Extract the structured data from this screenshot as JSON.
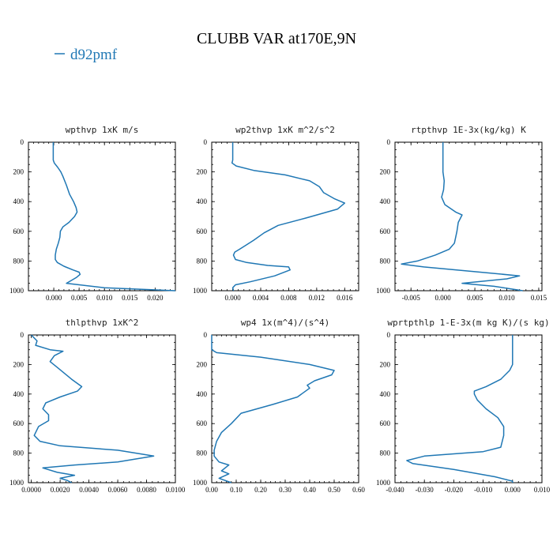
{
  "figure": {
    "title": "CLUBB VAR at170E,9N",
    "legend": {
      "label": "d92pmf",
      "color": "#1f77b4"
    }
  },
  "chart_data": [
    {
      "type": "line",
      "title": "wpthvp  1xK m/s",
      "xlim": [
        -0.005,
        0.024
      ],
      "xticks": [
        0.0,
        0.005,
        0.01,
        0.015,
        0.02
      ],
      "xtick_labels": [
        "0.000",
        "0.005",
        "0.010",
        "0.015",
        "0.020"
      ],
      "ylim": [
        0,
        1000
      ],
      "yticks": [
        0,
        200,
        400,
        600,
        800,
        1000
      ],
      "y_inverted": true,
      "series": [
        {
          "name": "d92pmf",
          "color": "#1f77b4",
          "x": [
            -0.0001,
            -0.0001,
            0.0001,
            0.0008,
            0.0014,
            0.0018,
            0.0025,
            0.0031,
            0.0039,
            0.0044,
            0.0046,
            0.0041,
            0.003,
            0.0018,
            0.0013,
            0.0012,
            0.0009,
            0.0005,
            0.0003,
            0.0003,
            0.0007,
            0.002,
            0.0038,
            0.005,
            0.0052,
            0.0045,
            0.0025,
            0.01,
            0.024
          ],
          "y": [
            0,
            120,
            140,
            170,
            200,
            230,
            290,
            350,
            400,
            440,
            470,
            500,
            540,
            570,
            600,
            640,
            680,
            720,
            760,
            790,
            810,
            835,
            860,
            875,
            890,
            910,
            950,
            980,
            1000
          ]
        }
      ]
    },
    {
      "type": "line",
      "title": "wp2thvp  1xK m^2/s^2",
      "xlim": [
        -0.003,
        0.018
      ],
      "xticks": [
        0.0,
        0.004,
        0.008,
        0.012,
        0.016
      ],
      "xtick_labels": [
        "0.000",
        "0.004",
        "0.008",
        "0.012",
        "0.016"
      ],
      "ylim": [
        0,
        1000
      ],
      "yticks": [
        0,
        200,
        400,
        600,
        800,
        1000
      ],
      "y_inverted": true,
      "series": [
        {
          "name": "d92pmf",
          "color": "#1f77b4",
          "x": [
            0.0,
            0.0,
            -0.0001,
            0.0005,
            0.003,
            0.0075,
            0.011,
            0.0124,
            0.013,
            0.0145,
            0.016,
            0.015,
            0.0105,
            0.0065,
            0.0045,
            0.003,
            0.002,
            0.001,
            0.0003,
            0.0001,
            0.0004,
            0.002,
            0.005,
            0.008,
            0.0082,
            0.006,
            0.0025,
            0.0004,
            0.0,
            0.0001
          ],
          "y": [
            0,
            120,
            140,
            160,
            190,
            220,
            260,
            300,
            340,
            380,
            410,
            450,
            510,
            560,
            610,
            660,
            690,
            720,
            740,
            760,
            790,
            810,
            830,
            840,
            860,
            900,
            940,
            960,
            980,
            1000
          ]
        }
      ]
    },
    {
      "type": "line",
      "title": "rtpthvp  1E-3x(kg/kg) K",
      "xlim": [
        -0.0075,
        0.0155
      ],
      "xticks": [
        -0.005,
        0.0,
        0.005,
        0.01,
        0.015
      ],
      "xtick_labels": [
        "-0.005",
        "0.000",
        "0.005",
        "0.010",
        "0.015"
      ],
      "ylim": [
        0,
        1000
      ],
      "yticks": [
        0,
        200,
        400,
        600,
        800,
        1000
      ],
      "y_inverted": true,
      "series": [
        {
          "name": "d92pmf",
          "color": "#1f77b4",
          "x": [
            0.0,
            0.0,
            0.0002,
            0.0001,
            -0.0002,
            0.0003,
            0.002,
            0.003,
            0.0024,
            0.0022,
            0.0018,
            0.001,
            -0.0012,
            -0.004,
            -0.0065,
            -0.003,
            0.007,
            0.012,
            0.01,
            0.003,
            0.008,
            0.0125
          ],
          "y": [
            0,
            200,
            260,
            320,
            370,
            420,
            470,
            490,
            540,
            600,
            680,
            720,
            760,
            800,
            820,
            840,
            880,
            900,
            920,
            950,
            970,
            1000
          ]
        }
      ]
    },
    {
      "type": "line",
      "title": "thlpthvp  1xK^2",
      "xlim": [
        -0.0002,
        0.01
      ],
      "xticks": [
        0.0,
        0.002,
        0.004,
        0.006,
        0.008,
        0.01
      ],
      "xtick_labels": [
        "0.0000",
        "0.0020",
        "0.0040",
        "0.0060",
        "0.0080",
        "0.0100"
      ],
      "ylim": [
        0,
        1000
      ],
      "yticks": [
        0,
        200,
        400,
        600,
        800,
        1000
      ],
      "y_inverted": true,
      "series": [
        {
          "name": "d92pmf",
          "color": "#1f77b4",
          "x": [
            0.0,
            0.0004,
            0.0003,
            0.0013,
            0.0022,
            0.0016,
            0.0013,
            0.0018,
            0.0028,
            0.0035,
            0.0032,
            0.002,
            0.001,
            0.0008,
            0.0012,
            0.0012,
            0.0005,
            0.0002,
            0.0006,
            0.002,
            0.006,
            0.0085,
            0.006,
            0.003,
            0.0008,
            0.0018,
            0.003,
            0.002,
            0.0025,
            0.0028
          ],
          "y": [
            0,
            40,
            70,
            100,
            110,
            140,
            180,
            220,
            300,
            350,
            380,
            420,
            460,
            500,
            540,
            580,
            620,
            680,
            720,
            750,
            780,
            820,
            860,
            880,
            900,
            930,
            950,
            970,
            985,
            1000
          ]
        }
      ]
    },
    {
      "type": "line",
      "title": "wp4  1x(m^4)/(s^4)",
      "xlim": [
        0,
        0.6
      ],
      "xticks": [
        0.0,
        0.1,
        0.2,
        0.3,
        0.4,
        0.5,
        0.6
      ],
      "xtick_labels": [
        "0.00",
        "0.10",
        "0.20",
        "0.30",
        "0.40",
        "0.50",
        "0.60"
      ],
      "ylim": [
        0,
        1000
      ],
      "yticks": [
        0,
        200,
        400,
        600,
        800,
        1000
      ],
      "y_inverted": true,
      "series": [
        {
          "name": "d92pmf",
          "color": "#1f77b4",
          "x": [
            0.0,
            0.0,
            0.02,
            0.2,
            0.4,
            0.5,
            0.49,
            0.42,
            0.39,
            0.4,
            0.35,
            0.25,
            0.12,
            0.08,
            0.04,
            0.02,
            0.01,
            0.01,
            0.03,
            0.07,
            0.04,
            0.07,
            0.03,
            0.08
          ],
          "y": [
            0,
            100,
            120,
            150,
            200,
            240,
            270,
            310,
            340,
            360,
            420,
            470,
            530,
            600,
            660,
            720,
            780,
            820,
            860,
            880,
            920,
            940,
            970,
            1000
          ]
        }
      ]
    },
    {
      "type": "line",
      "title": "wprtpthlp  1-E-3x(m kg K)/(s kg)",
      "xlim": [
        -0.04,
        0.01
      ],
      "xticks": [
        -0.04,
        -0.03,
        -0.02,
        -0.01,
        0.0,
        0.01
      ],
      "xtick_labels": [
        "-0.040",
        "-0.030",
        "-0.020",
        "-0.010",
        "0.000",
        "0.010"
      ],
      "ylim": [
        0,
        1000
      ],
      "yticks": [
        0,
        200,
        400,
        600,
        800,
        1000
      ],
      "y_inverted": true,
      "series": [
        {
          "name": "d92pmf",
          "color": "#1f77b4",
          "x": [
            0.0,
            0.0,
            -0.001,
            -0.004,
            -0.009,
            -0.013,
            -0.013,
            -0.012,
            -0.009,
            -0.005,
            -0.003,
            -0.003,
            -0.004,
            -0.01,
            -0.03,
            -0.036,
            -0.034,
            -0.02,
            -0.006,
            0.0,
            0.0
          ],
          "y": [
            0,
            200,
            240,
            300,
            350,
            380,
            400,
            440,
            500,
            560,
            620,
            680,
            760,
            790,
            820,
            850,
            870,
            910,
            960,
            990,
            1000
          ]
        }
      ]
    }
  ]
}
